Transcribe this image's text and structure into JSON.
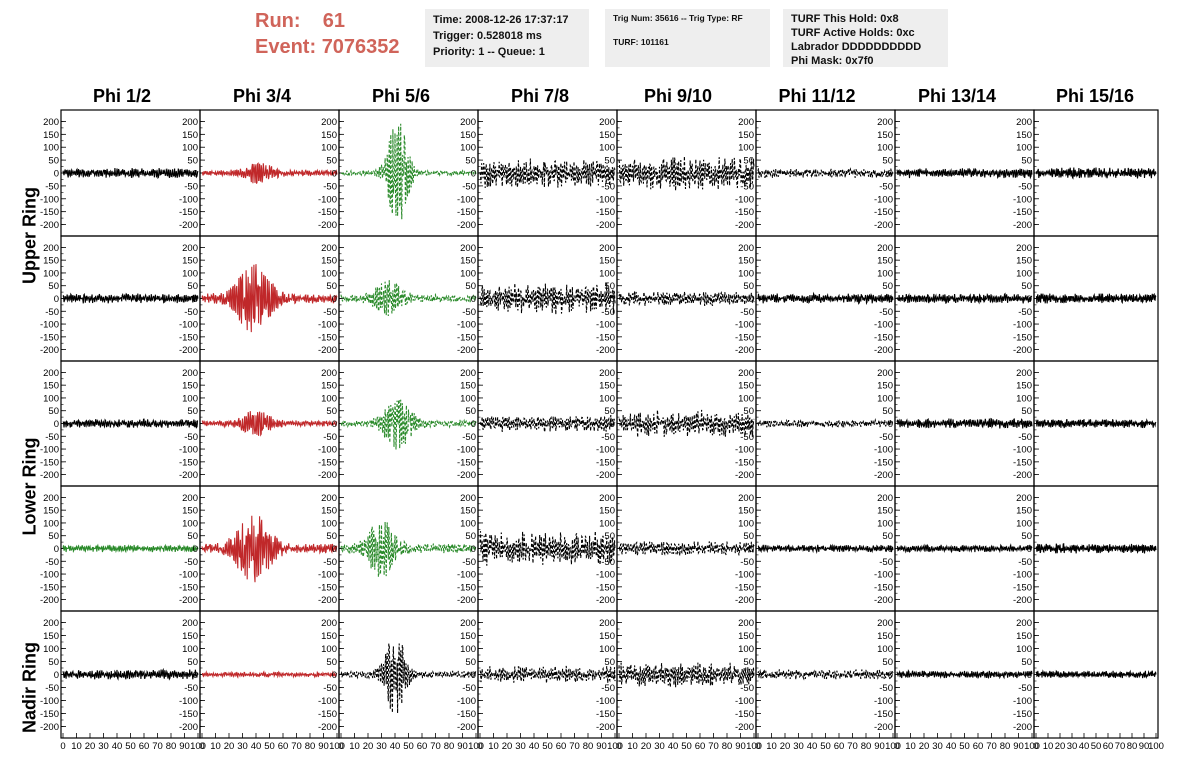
{
  "header": {
    "run_label": "Run:",
    "run_value": "61",
    "event_label": "Event:",
    "event_value": "7076352"
  },
  "info_boxes": {
    "time": "Time: 2008-12-26 17:37:17",
    "trigger": "Trigger: 0.528018 ms",
    "priority": "Priority: 1 -- Queue: 1",
    "trig_num": "Trig Num: 35616 -- Trig Type: RF",
    "turf": "TURF: 101161",
    "turf_this_hold": "TURF This Hold: 0x8",
    "turf_active_holds": "TURF Active Holds: 0xc",
    "labrador": "Labrador DDDDDDDDDD",
    "phi_mask": "Phi Mask: 0x7f0"
  },
  "columns": [
    "Phi 1/2",
    "Phi 3/4",
    "Phi 5/6",
    "Phi 7/8",
    "Phi 9/10",
    "Phi 11/12",
    "Phi 13/14",
    "Phi 15/16"
  ],
  "rings": [
    "Upper Ring",
    "Lower Ring",
    "Nadir Ring"
  ],
  "colors": {
    "black": "#000000",
    "red": "#c0282a",
    "green": "#2a8a2a",
    "header_red": "#d0645a",
    "box_bg": "#eeeeee"
  },
  "chart_data": {
    "type": "line",
    "title": "",
    "xlabel": "",
    "ylabel": "",
    "xlim": [
      0,
      100
    ],
    "ylim": [
      -225,
      225
    ],
    "x_ticks": [
      0,
      10,
      20,
      30,
      40,
      50,
      60,
      70,
      80,
      90,
      100
    ],
    "x_tick_labels": [
      "0",
      "10",
      "20",
      "30",
      "40",
      "50",
      "60",
      "70",
      "80",
      "90",
      "100"
    ],
    "y_ticks": [
      200,
      150,
      100,
      50,
      0,
      -50,
      -100,
      -150,
      -200
    ],
    "y_tick_labels": [
      "200",
      "150",
      "100",
      "50",
      "0",
      "-50",
      "-100",
      "-150",
      "-200"
    ],
    "panel_rows": [
      {
        "row": "Upper Ring (1)",
        "panels": [
          {
            "col": "Phi 1/2",
            "color": "black",
            "dashed": false,
            "amp": 20,
            "peak_center": 0,
            "peak_width": 0,
            "peak_amp": 0
          },
          {
            "col": "Phi 3/4",
            "color": "red",
            "dashed": false,
            "amp": 12,
            "peak_center": 42,
            "peak_width": 8,
            "peak_amp": 35
          },
          {
            "col": "Phi 5/6",
            "color": "green",
            "dashed": true,
            "amp": 10,
            "peak_center": 42,
            "peak_width": 6,
            "peak_amp": 200
          },
          {
            "col": "Phi 7/8",
            "color": "black",
            "dashed": true,
            "amp": 60,
            "peak_center": 0,
            "peak_width": 0,
            "peak_amp": 0
          },
          {
            "col": "Phi 9/10",
            "color": "black",
            "dashed": true,
            "amp": 70,
            "peak_center": 0,
            "peak_width": 0,
            "peak_amp": 0
          },
          {
            "col": "Phi 11/12",
            "color": "black",
            "dashed": true,
            "amp": 20,
            "peak_center": 0,
            "peak_width": 0,
            "peak_amp": 0
          },
          {
            "col": "Phi 13/14",
            "color": "black",
            "dashed": false,
            "amp": 20,
            "peak_center": 0,
            "peak_width": 0,
            "peak_amp": 0
          },
          {
            "col": "Phi 15/16",
            "color": "black",
            "dashed": false,
            "amp": 22,
            "peak_center": 0,
            "peak_width": 0,
            "peak_amp": 0
          }
        ]
      },
      {
        "row": "Upper Ring (2)",
        "panels": [
          {
            "col": "Phi 1/2",
            "color": "black",
            "dashed": false,
            "amp": 20,
            "peak_center": 0,
            "peak_width": 0,
            "peak_amp": 0
          },
          {
            "col": "Phi 3/4",
            "color": "red",
            "dashed": false,
            "amp": 20,
            "peak_center": 38,
            "peak_width": 10,
            "peak_amp": 120
          },
          {
            "col": "Phi 5/6",
            "color": "green",
            "dashed": true,
            "amp": 15,
            "peak_center": 35,
            "peak_width": 8,
            "peak_amp": 60
          },
          {
            "col": "Phi 7/8",
            "color": "black",
            "dashed": true,
            "amp": 65,
            "peak_center": 0,
            "peak_width": 0,
            "peak_amp": 0
          },
          {
            "col": "Phi 9/10",
            "color": "black",
            "dashed": true,
            "amp": 30,
            "peak_center": 0,
            "peak_width": 0,
            "peak_amp": 0
          },
          {
            "col": "Phi 11/12",
            "color": "black",
            "dashed": false,
            "amp": 20,
            "peak_center": 0,
            "peak_width": 0,
            "peak_amp": 0
          },
          {
            "col": "Phi 13/14",
            "color": "black",
            "dashed": false,
            "amp": 20,
            "peak_center": 0,
            "peak_width": 0,
            "peak_amp": 0
          },
          {
            "col": "Phi 15/16",
            "color": "black",
            "dashed": false,
            "amp": 20,
            "peak_center": 0,
            "peak_width": 0,
            "peak_amp": 0
          }
        ]
      },
      {
        "row": "Lower Ring (1)",
        "panels": [
          {
            "col": "Phi 1/2",
            "color": "black",
            "dashed": false,
            "amp": 18,
            "peak_center": 0,
            "peak_width": 0,
            "peak_amp": 0
          },
          {
            "col": "Phi 3/4",
            "color": "red",
            "dashed": false,
            "amp": 12,
            "peak_center": 40,
            "peak_width": 8,
            "peak_amp": 45
          },
          {
            "col": "Phi 5/6",
            "color": "green",
            "dashed": true,
            "amp": 15,
            "peak_center": 42,
            "peak_width": 8,
            "peak_amp": 90
          },
          {
            "col": "Phi 7/8",
            "color": "black",
            "dashed": true,
            "amp": 35,
            "peak_center": 0,
            "peak_width": 0,
            "peak_amp": 0
          },
          {
            "col": "Phi 9/10",
            "color": "black",
            "dashed": true,
            "amp": 55,
            "peak_center": 0,
            "peak_width": 0,
            "peak_amp": 0
          },
          {
            "col": "Phi 11/12",
            "color": "black",
            "dashed": true,
            "amp": 15,
            "peak_center": 0,
            "peak_width": 0,
            "peak_amp": 0
          },
          {
            "col": "Phi 13/14",
            "color": "black",
            "dashed": false,
            "amp": 20,
            "peak_center": 0,
            "peak_width": 0,
            "peak_amp": 0
          },
          {
            "col": "Phi 15/16",
            "color": "black",
            "dashed": false,
            "amp": 18,
            "peak_center": 0,
            "peak_width": 0,
            "peak_amp": 0
          }
        ]
      },
      {
        "row": "Lower Ring (2)",
        "panels": [
          {
            "col": "Phi 1/2",
            "color": "green",
            "dashed": false,
            "amp": 15,
            "peak_center": 0,
            "peak_width": 0,
            "peak_amp": 0
          },
          {
            "col": "Phi 3/4",
            "color": "red",
            "dashed": false,
            "amp": 20,
            "peak_center": 38,
            "peak_width": 10,
            "peak_amp": 120
          },
          {
            "col": "Phi 5/6",
            "color": "green",
            "dashed": true,
            "amp": 20,
            "peak_center": 30,
            "peak_width": 8,
            "peak_amp": 100
          },
          {
            "col": "Phi 7/8",
            "color": "black",
            "dashed": true,
            "amp": 70,
            "peak_center": 0,
            "peak_width": 0,
            "peak_amp": 0
          },
          {
            "col": "Phi 9/10",
            "color": "black",
            "dashed": true,
            "amp": 30,
            "peak_center": 0,
            "peak_width": 0,
            "peak_amp": 0
          },
          {
            "col": "Phi 11/12",
            "color": "black",
            "dashed": false,
            "amp": 15,
            "peak_center": 0,
            "peak_width": 0,
            "peak_amp": 0
          },
          {
            "col": "Phi 13/14",
            "color": "black",
            "dashed": false,
            "amp": 15,
            "peak_center": 0,
            "peak_width": 0,
            "peak_amp": 0
          },
          {
            "col": "Phi 15/16",
            "color": "black",
            "dashed": false,
            "amp": 20,
            "peak_center": 0,
            "peak_width": 0,
            "peak_amp": 0
          }
        ]
      },
      {
        "row": "Nadir Ring",
        "panels": [
          {
            "col": "Phi 1/2",
            "color": "black",
            "dashed": false,
            "amp": 20,
            "peak_center": 0,
            "peak_width": 0,
            "peak_amp": 0
          },
          {
            "col": "Phi 3/4",
            "color": "red",
            "dashed": false,
            "amp": 10,
            "peak_center": 0,
            "peak_width": 0,
            "peak_amp": 0
          },
          {
            "col": "Phi 5/6",
            "color": "black",
            "dashed": true,
            "amp": 15,
            "peak_center": 40,
            "peak_width": 6,
            "peak_amp": 150
          },
          {
            "col": "Phi 7/8",
            "color": "black",
            "dashed": true,
            "amp": 35,
            "peak_center": 0,
            "peak_width": 0,
            "peak_amp": 0
          },
          {
            "col": "Phi 9/10",
            "color": "black",
            "dashed": true,
            "amp": 50,
            "peak_center": 0,
            "peak_width": 0,
            "peak_amp": 0
          },
          {
            "col": "Phi 11/12",
            "color": "black",
            "dashed": true,
            "amp": 20,
            "peak_center": 0,
            "peak_width": 0,
            "peak_amp": 0
          },
          {
            "col": "Phi 13/14",
            "color": "black",
            "dashed": false,
            "amp": 15,
            "peak_center": 0,
            "peak_width": 0,
            "peak_amp": 0
          },
          {
            "col": "Phi 15/16",
            "color": "black",
            "dashed": false,
            "amp": 15,
            "peak_center": 0,
            "peak_width": 0,
            "peak_amp": 0
          }
        ]
      }
    ]
  }
}
